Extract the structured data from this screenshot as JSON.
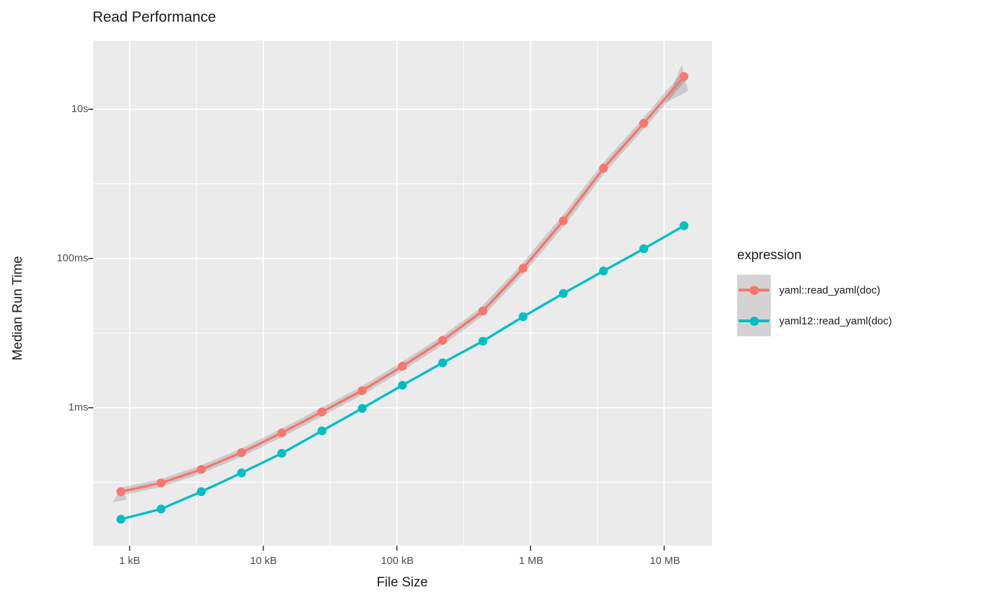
{
  "title": "Read Performance",
  "colors": {
    "panel_bg": "#ebebeb",
    "grid": "#ffffff",
    "tick_mark": "#333333",
    "tick_text": "#4d4d4d",
    "text": "#1a1a1a",
    "se_band": "rgba(96,96,96,0.24)",
    "legend_key_bg": "#d3d3d3"
  },
  "chart_data": {
    "type": "line",
    "title": "Read Performance",
    "xlabel": "File Size",
    "ylabel": "Median Run Time",
    "x_scale": "log10, file size in kB",
    "y_scale": "log10, time in ms",
    "xlim_kb": [
      0.53,
      22500
    ],
    "ylim_ms": [
      0.014,
      83000
    ],
    "grid": "major and minor, white on gray panel",
    "legend_title": "expression",
    "legend_position": "right",
    "x_ticks": [
      {
        "value_kb": 1,
        "label": "1 kB"
      },
      {
        "value_kb": 10,
        "label": "10 kB"
      },
      {
        "value_kb": 100,
        "label": "100 kB"
      },
      {
        "value_kb": 1000,
        "label": "1 MB"
      },
      {
        "value_kb": 10000,
        "label": "10 MB"
      }
    ],
    "x_minor_ticks_kb": [
      3.162,
      31.62,
      316.2,
      3162
    ],
    "y_ticks": [
      {
        "value_ms": 1,
        "label": "1ms"
      },
      {
        "value_ms": 100,
        "label": "100ms"
      },
      {
        "value_ms": 10000,
        "label": "10s"
      }
    ],
    "y_minor_ticks_ms": [
      0.1,
      10,
      1000
    ],
    "x_kb": [
      0.86,
      1.72,
      3.44,
      6.88,
      13.75,
      27.5,
      55,
      110,
      220,
      440,
      880,
      1760,
      3520,
      7040,
      14080
    ],
    "series": [
      {
        "name": "yaml::read_yaml(doc)",
        "color": "#F8766D",
        "has_se_band": true,
        "y_ms": [
          0.075,
          0.098,
          0.149,
          0.25,
          0.46,
          0.88,
          1.7,
          3.6,
          8.0,
          19.8,
          74,
          320,
          1620,
          6500,
          27500
        ]
      },
      {
        "name": "yaml12::read_yaml(doc)",
        "color": "#00BFC4",
        "has_se_band": false,
        "y_ms": [
          0.032,
          0.044,
          0.075,
          0.134,
          0.245,
          0.49,
          0.98,
          2.0,
          4.0,
          7.8,
          16.6,
          34,
          68,
          135,
          275
        ]
      }
    ]
  }
}
